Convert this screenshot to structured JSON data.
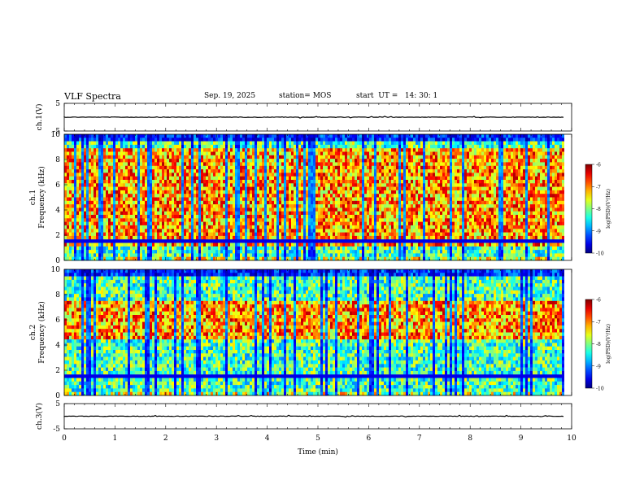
{
  "header": {
    "title": "VLF Spectra",
    "date": "Sep. 19, 2025",
    "station": "station= MOS",
    "start": "start  UT =   14: 30: 1"
  },
  "chart_data": [
    {
      "type": "line",
      "title": "",
      "ylabel": "ch.1(V)",
      "ylim": [
        -5,
        5
      ],
      "yticks": [
        "5",
        "-5"
      ],
      "series": [
        {
          "name": "ch.1 waveform",
          "level": 0,
          "amplitude_note": "near-constant trace"
        }
      ]
    },
    {
      "type": "heatmap",
      "ylabel_line1": "ch.1",
      "ylabel_line2": "Frequency (kHz)",
      "ylim": [
        0,
        10
      ],
      "yticks": [
        "0",
        "2",
        "4",
        "6",
        "8",
        "10"
      ],
      "colorbar": {
        "label": "log(PSD)(V²/Hz)",
        "range": [
          -10,
          -6
        ],
        "ticks": [
          "-6",
          "-7",
          "-8",
          "-9",
          "-10"
        ]
      },
      "band_kHz": [
        1,
        9
      ]
    },
    {
      "type": "heatmap",
      "ylabel_line1": "ch.2",
      "ylabel_line2": "Frequency (kHz)",
      "ylim": [
        0,
        10
      ],
      "yticks": [
        "0",
        "2",
        "4",
        "6",
        "8",
        "10"
      ],
      "colorbar": {
        "label": "log(PSD)(V²/Hz)",
        "range": [
          -10,
          -6
        ],
        "ticks": [
          "-6",
          "-7",
          "-8",
          "-9",
          "-10"
        ]
      },
      "band_kHz": [
        4.5,
        7.5
      ]
    },
    {
      "type": "line",
      "title": "",
      "ylabel": "ch.3(V)",
      "ylim": [
        -5,
        5
      ],
      "yticks": [
        "5",
        "-5"
      ],
      "series": [
        {
          "name": "ch.3 waveform",
          "level": 0,
          "amplitude_note": "near-constant trace"
        }
      ]
    }
  ],
  "xaxis": {
    "label": "Time (min)",
    "range": [
      0,
      10
    ],
    "ticks": [
      "0",
      "1",
      "2",
      "3",
      "4",
      "5",
      "6",
      "7",
      "8",
      "9",
      "10"
    ],
    "data_end_min": 9.85
  },
  "colors": {
    "axis": "#000000",
    "background": "#ffffff"
  }
}
